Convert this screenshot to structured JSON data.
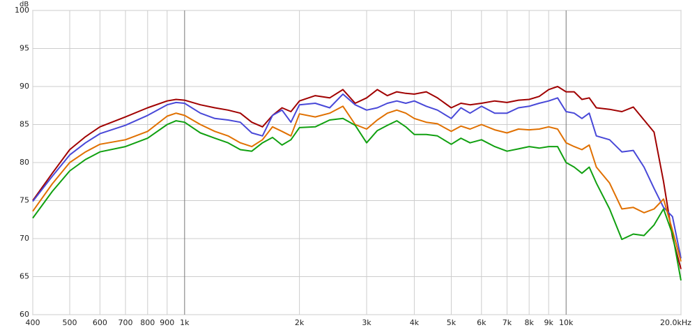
{
  "chart_data": {
    "type": "line",
    "y_label": "dB",
    "log_x": true,
    "grid": true,
    "xlim": [
      400,
      20000
    ],
    "ylim": [
      60,
      100
    ],
    "xticks": [
      400,
      500,
      600,
      700,
      800,
      900,
      {
        "value": 1000,
        "label": "1k"
      },
      {
        "value": 2000,
        "label": "2k"
      },
      {
        "value": 3000,
        "label": "3k"
      },
      {
        "value": 4000,
        "label": "4k"
      },
      {
        "value": 5000,
        "label": "5k"
      },
      {
        "value": 6000,
        "label": "6k"
      },
      {
        "value": 7000,
        "label": "7k"
      },
      {
        "value": 8000,
        "label": "8k"
      },
      {
        "value": 9000,
        "label": "9k"
      },
      {
        "value": 10000,
        "label": "10k"
      },
      {
        "value": 20000,
        "label": "20.0kHz"
      }
    ],
    "yticks": [
      60,
      65,
      70,
      75,
      80,
      85,
      90,
      95,
      100
    ],
    "x": [
      400,
      450,
      500,
      550,
      600,
      700,
      800,
      900,
      950,
      1000,
      1100,
      1200,
      1300,
      1400,
      1500,
      1600,
      1700,
      1800,
      1900,
      2000,
      2200,
      2400,
      2600,
      2800,
      3000,
      3200,
      3400,
      3600,
      3800,
      4000,
      4300,
      4600,
      5000,
      5300,
      5600,
      6000,
      6500,
      7000,
      7500,
      8000,
      8500,
      9000,
      9500,
      10000,
      10500,
      11000,
      11500,
      12000,
      13000,
      14000,
      15000,
      16000,
      17000,
      18000,
      19000,
      20000
    ],
    "series": [
      {
        "color": "#a00000",
        "values": [
          75,
          78.6,
          81.7,
          83.4,
          84.7,
          86,
          87.2,
          88.1,
          88.3,
          88.2,
          87.6,
          87.2,
          86.9,
          86.5,
          85.3,
          84.7,
          86.2,
          87.2,
          86.7,
          88.1,
          88.8,
          88.5,
          89.6,
          87.8,
          88.5,
          89.6,
          88.8,
          89.3,
          89.1,
          89,
          89.3,
          88.5,
          87.2,
          87.8,
          87.6,
          87.8,
          88.1,
          87.9,
          88.2,
          88.3,
          88.7,
          89.6,
          90,
          89.3,
          89.3,
          88.3,
          88.5,
          87.2,
          87,
          86.7,
          87.3,
          85.6,
          84,
          77.5,
          70.2,
          66
        ]
      },
      {
        "color": "#4848d8",
        "values": [
          74.9,
          78.2,
          81,
          82.6,
          83.8,
          84.9,
          86.2,
          87.6,
          87.9,
          87.8,
          86.5,
          85.8,
          85.6,
          85.3,
          83.9,
          83.5,
          86.2,
          86.9,
          85.3,
          87.6,
          87.8,
          87.2,
          89,
          87.6,
          86.9,
          87.2,
          87.8,
          88.1,
          87.8,
          88.1,
          87.4,
          86.9,
          85.8,
          87.2,
          86.5,
          87.4,
          86.5,
          86.5,
          87.2,
          87.4,
          87.8,
          88.1,
          88.5,
          86.7,
          86.5,
          85.8,
          86.5,
          83.5,
          83,
          81.4,
          81.6,
          79.4,
          76.6,
          74.1,
          72.9,
          67.4
        ]
      },
      {
        "color": "#e07000",
        "values": [
          73.6,
          77.2,
          80,
          81.4,
          82.4,
          83,
          84.1,
          86.1,
          86.5,
          86.2,
          85,
          84.1,
          83.5,
          82.6,
          82.1,
          83,
          84.7,
          84.1,
          83.5,
          86.4,
          86,
          86.5,
          87.4,
          85,
          84.4,
          85.6,
          86.5,
          86.9,
          86.5,
          85.8,
          85.3,
          85.1,
          84.1,
          84.8,
          84.4,
          85,
          84.3,
          83.9,
          84.4,
          84.3,
          84.4,
          84.7,
          84.4,
          82.6,
          82.1,
          81.7,
          82.3,
          79.4,
          77.3,
          73.9,
          74.1,
          73.4,
          73.9,
          75.2,
          71.1,
          67
        ]
      },
      {
        "color": "#10a010",
        "values": [
          72.7,
          76.2,
          78.9,
          80.4,
          81.4,
          82.1,
          83.2,
          85,
          85.5,
          85.3,
          83.9,
          83.2,
          82.6,
          81.7,
          81.5,
          82.6,
          83.3,
          82.3,
          83,
          84.6,
          84.7,
          85.6,
          85.8,
          84.9,
          82.6,
          84.2,
          84.9,
          85.5,
          84.7,
          83.7,
          83.7,
          83.5,
          82.4,
          83.2,
          82.6,
          83,
          82.1,
          81.5,
          81.8,
          82.1,
          81.9,
          82.1,
          82.1,
          80,
          79.4,
          78.6,
          79.4,
          77.3,
          73.9,
          69.9,
          70.6,
          70.4,
          71.8,
          73.9,
          70.6,
          64.5
        ]
      }
    ]
  }
}
